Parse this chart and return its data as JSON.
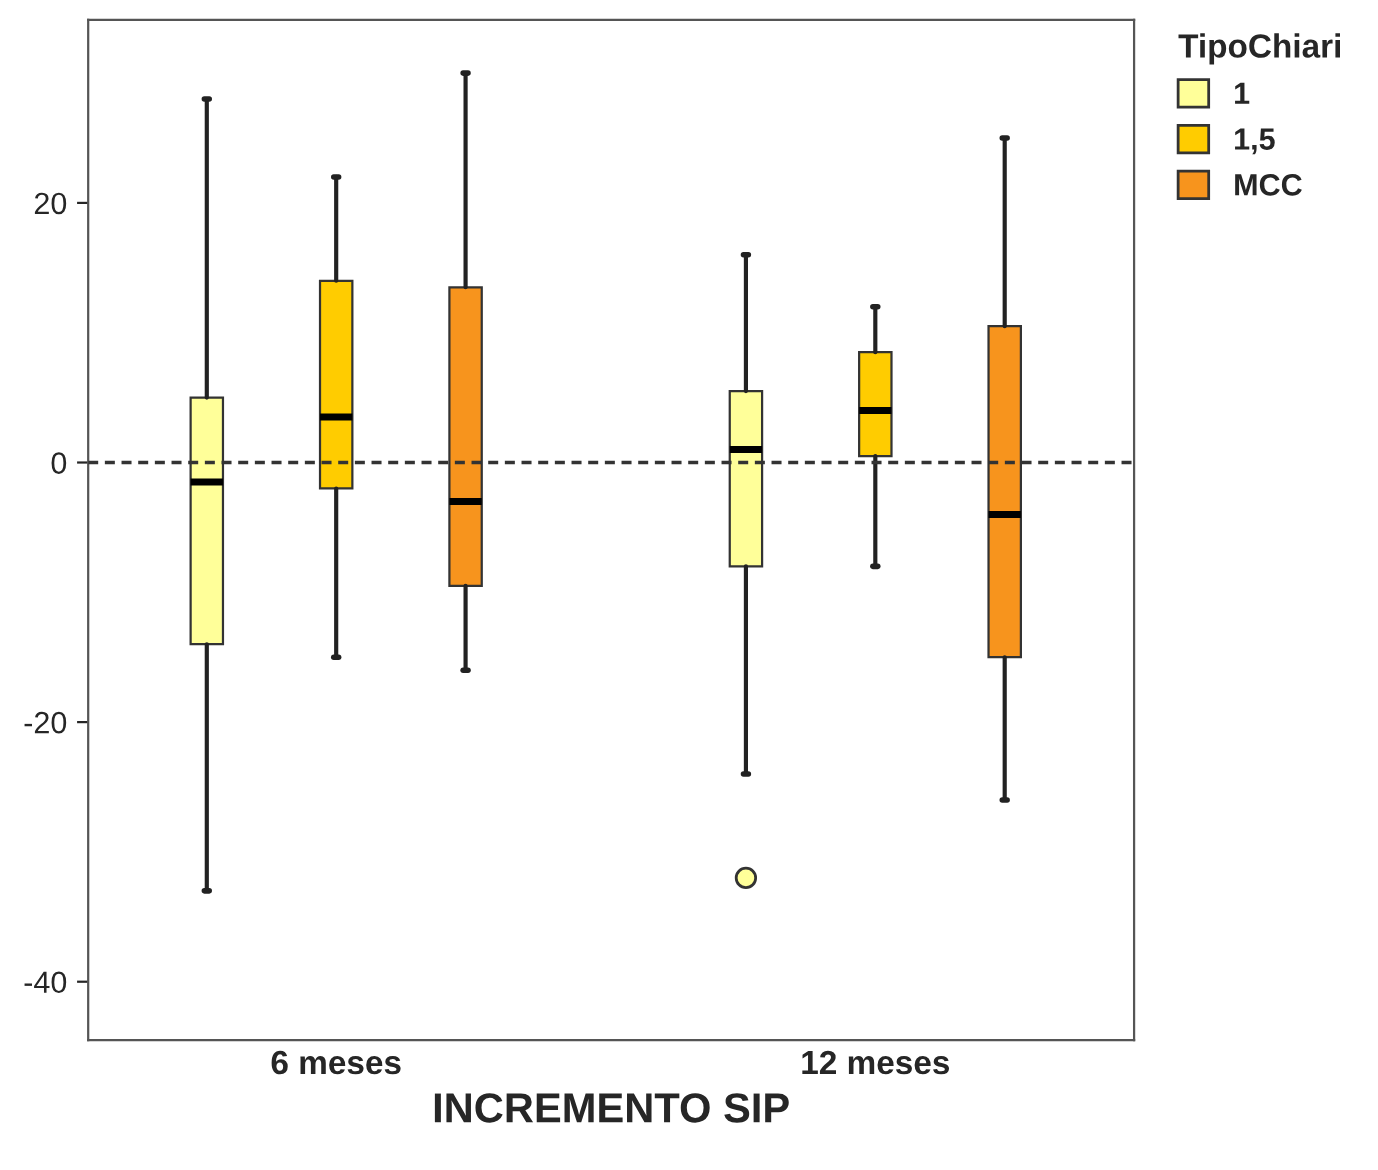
{
  "chart_data": {
    "type": "box",
    "xlabel": "INCREMENTO SIP",
    "legend_title": "TipoChiari",
    "legend": "top right",
    "categories": [
      "6 meses",
      "12 meses"
    ],
    "ylim": [
      -44.5,
      34.1
    ],
    "yticks": [
      -40,
      -20,
      0,
      20
    ],
    "grid": false,
    "ref_lines": [
      {
        "axis": "y",
        "value": 0,
        "line_style": "dashed"
      }
    ],
    "series": [
      {
        "name": "1",
        "color": "#ffff99",
        "boxes": [
          {
            "low": -33,
            "q1": -14,
            "median": -1.5,
            "q3": 5,
            "high": 28
          },
          {
            "low": -24,
            "q1": -8,
            "median": 1,
            "q3": 5.5,
            "high": 16,
            "outliers": [
              -32
            ]
          }
        ]
      },
      {
        "name": "1,5",
        "color": "#ffcc00",
        "boxes": [
          {
            "low": -15,
            "q1": -2,
            "median": 3.5,
            "q3": 14,
            "high": 22
          },
          {
            "low": -8,
            "q1": 0.5,
            "median": 4,
            "q3": 8.5,
            "high": 12
          }
        ]
      },
      {
        "name": "MCC",
        "color": "#f7941d",
        "boxes": [
          {
            "low": -16,
            "q1": -9.5,
            "median": -3,
            "q3": 13.5,
            "high": 30
          },
          {
            "low": -26,
            "q1": -15,
            "median": -4,
            "q3": 10.5,
            "high": 25
          }
        ]
      }
    ]
  }
}
